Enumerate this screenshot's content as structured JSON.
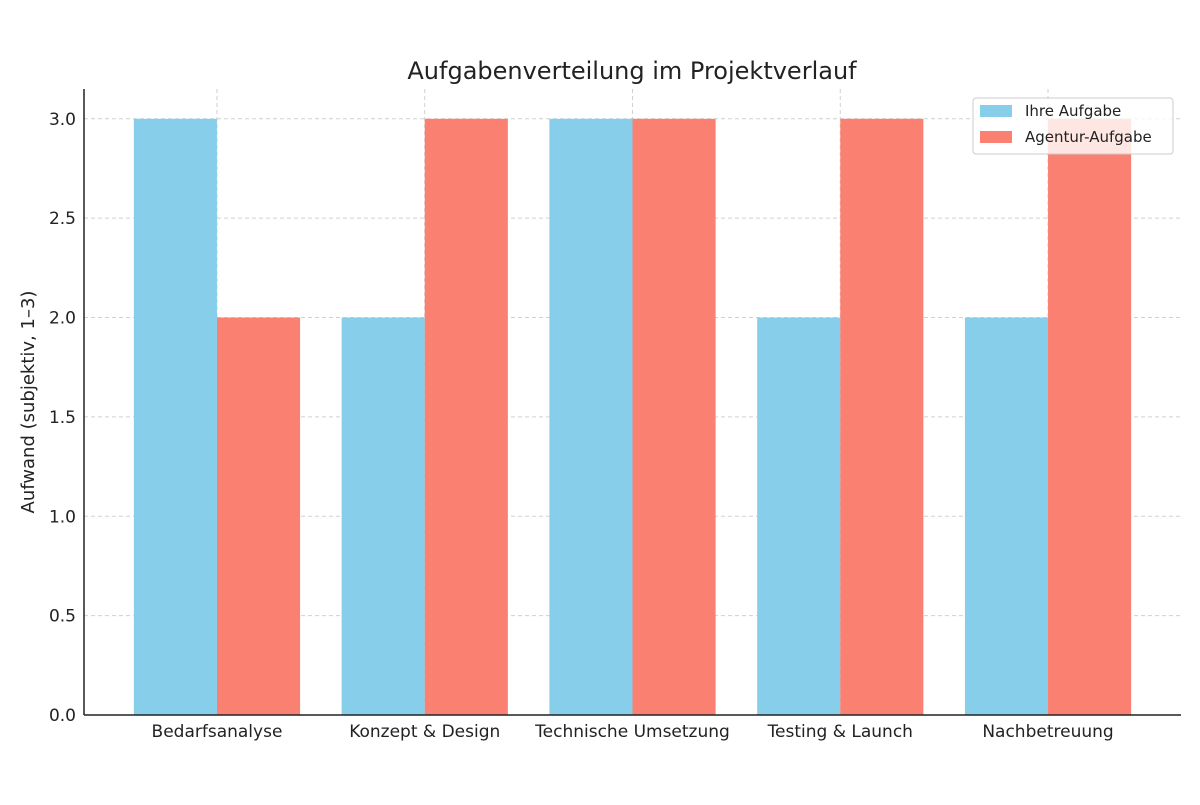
{
  "chart_data": {
    "type": "bar",
    "title": "Aufgabenverteilung im Projektverlauf",
    "xlabel": "",
    "ylabel": "Aufwand (subjektiv, 1–3)",
    "categories": [
      "Bedarfsanalyse",
      "Konzept & Design",
      "Technische Umsetzung",
      "Testing & Launch",
      "Nachbetreuung"
    ],
    "series": [
      {
        "name": "Ihre Aufgabe",
        "values": [
          3,
          2,
          3,
          2,
          2
        ],
        "color": "#87CEEB"
      },
      {
        "name": "Agentur-Aufgabe",
        "values": [
          2,
          3,
          3,
          3,
          3
        ],
        "color": "#FA8072"
      }
    ],
    "ylim": [
      0,
      3.15
    ],
    "yticks": [
      "0.0",
      "0.5",
      "1.0",
      "1.5",
      "2.0",
      "2.5",
      "3.0"
    ],
    "grid": true,
    "legend": "top-right"
  }
}
